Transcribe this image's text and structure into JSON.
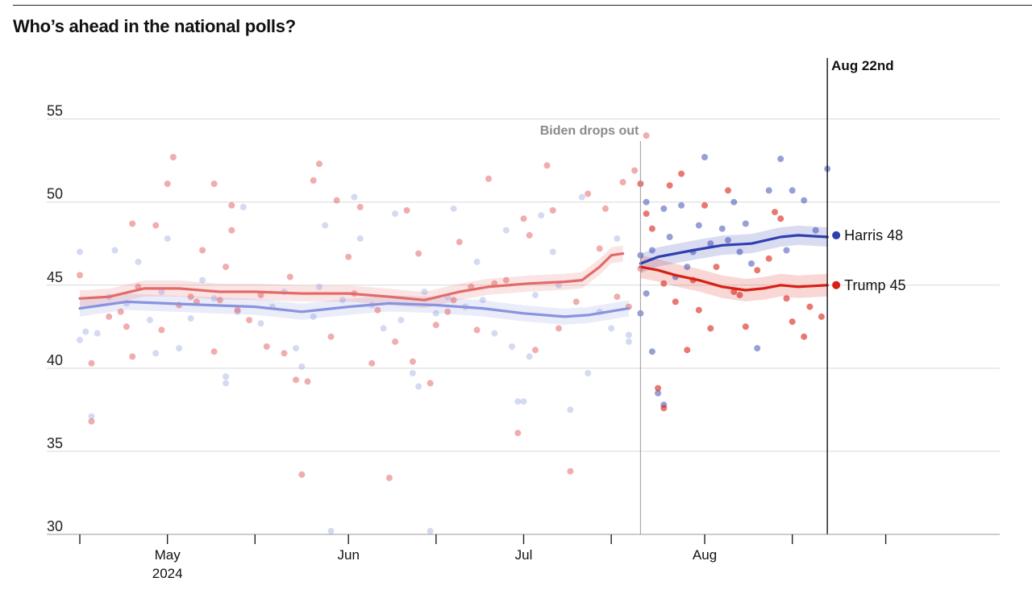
{
  "title": "Who’s ahead in the national polls?",
  "chart_data": {
    "type": "scatter",
    "title": "Who’s ahead in the national polls?",
    "xlabel": "",
    "ylabel": "",
    "x_axis": {
      "start": "2024-04-16",
      "end": "2024-09-15",
      "ticks": [
        {
          "date": "2024-04-16",
          "label": "",
          "sublabel": ""
        },
        {
          "date": "2024-05-01",
          "label": "May",
          "sublabel": "2024"
        },
        {
          "date": "2024-05-16",
          "label": "",
          "sublabel": ""
        },
        {
          "date": "2024-06-01",
          "label": "Jun",
          "sublabel": ""
        },
        {
          "date": "2024-06-16",
          "label": "",
          "sublabel": ""
        },
        {
          "date": "2024-07-01",
          "label": "Jul",
          "sublabel": ""
        },
        {
          "date": "2024-07-16",
          "label": "",
          "sublabel": ""
        },
        {
          "date": "2024-08-01",
          "label": "Aug",
          "sublabel": ""
        },
        {
          "date": "2024-08-16",
          "label": "",
          "sublabel": ""
        },
        {
          "date": "2024-09-01",
          "label": "",
          "sublabel": ""
        }
      ]
    },
    "ylim": [
      30,
      56
    ],
    "yticks": [
      30,
      35,
      40,
      45,
      50,
      55
    ],
    "grid": true,
    "annotations": [
      {
        "label": "Biden drops out",
        "date": "2024-07-21"
      },
      {
        "label": "Aug 22nd",
        "date": "2024-08-22"
      }
    ],
    "series": [
      {
        "role": "dem-before",
        "color": "#8894de",
        "trend": [
          [
            "2024-04-16",
            43.6
          ],
          [
            "2024-04-24",
            44.0
          ],
          [
            "2024-05-08",
            43.8
          ],
          [
            "2024-05-16",
            43.7
          ],
          [
            "2024-05-24",
            43.4
          ],
          [
            "2024-06-01",
            43.7
          ],
          [
            "2024-06-08",
            43.9
          ],
          [
            "2024-06-16",
            43.8
          ],
          [
            "2024-06-24",
            43.6
          ],
          [
            "2024-07-01",
            43.3
          ],
          [
            "2024-07-08",
            43.1
          ],
          [
            "2024-07-12",
            43.2
          ],
          [
            "2024-07-19",
            43.6
          ]
        ],
        "points": [
          [
            "2024-04-16",
            47.0
          ],
          [
            "2024-04-16",
            41.7
          ],
          [
            "2024-04-17",
            42.2
          ],
          [
            "2024-04-18",
            37.1
          ],
          [
            "2024-04-19",
            42.1
          ],
          [
            "2024-04-21",
            44.3
          ],
          [
            "2024-04-22",
            47.1
          ],
          [
            "2024-04-24",
            43.9
          ],
          [
            "2024-04-26",
            46.4
          ],
          [
            "2024-04-28",
            42.9
          ],
          [
            "2024-04-29",
            40.9
          ],
          [
            "2024-04-30",
            44.6
          ],
          [
            "2024-05-01",
            47.8
          ],
          [
            "2024-05-03",
            41.2
          ],
          [
            "2024-05-05",
            43.0
          ],
          [
            "2024-05-07",
            45.3
          ],
          [
            "2024-05-09",
            44.2
          ],
          [
            "2024-05-11",
            39.5
          ],
          [
            "2024-05-11",
            39.1
          ],
          [
            "2024-05-13",
            43.4
          ],
          [
            "2024-05-14",
            49.7
          ],
          [
            "2024-05-17",
            42.7
          ],
          [
            "2024-05-19",
            43.7
          ],
          [
            "2024-05-21",
            44.6
          ],
          [
            "2024-05-23",
            41.2
          ],
          [
            "2024-05-24",
            40.1
          ],
          [
            "2024-05-26",
            43.1
          ],
          [
            "2024-05-27",
            44.9
          ],
          [
            "2024-05-28",
            48.6
          ],
          [
            "2024-05-29",
            30.2
          ],
          [
            "2024-05-31",
            44.1
          ],
          [
            "2024-06-02",
            50.3
          ],
          [
            "2024-06-03",
            47.8
          ],
          [
            "2024-06-05",
            43.8
          ],
          [
            "2024-06-07",
            42.4
          ],
          [
            "2024-06-09",
            49.3
          ],
          [
            "2024-06-10",
            42.9
          ],
          [
            "2024-06-12",
            39.7
          ],
          [
            "2024-06-13",
            38.9
          ],
          [
            "2024-06-14",
            44.6
          ],
          [
            "2024-06-16",
            43.3
          ],
          [
            "2024-06-18",
            44.3
          ],
          [
            "2024-06-19",
            49.6
          ],
          [
            "2024-06-21",
            43.7
          ],
          [
            "2024-06-23",
            46.4
          ],
          [
            "2024-06-24",
            44.1
          ],
          [
            "2024-06-26",
            42.1
          ],
          [
            "2024-06-28",
            48.3
          ],
          [
            "2024-06-29",
            41.3
          ],
          [
            "2024-06-30",
            38.0
          ],
          [
            "2024-07-01",
            38.0
          ],
          [
            "2024-07-02",
            40.7
          ],
          [
            "2024-07-03",
            44.4
          ],
          [
            "2024-07-04",
            49.2
          ],
          [
            "2024-07-06",
            47.0
          ],
          [
            "2024-07-07",
            45.0
          ],
          [
            "2024-07-09",
            37.5
          ],
          [
            "2024-07-11",
            50.3
          ],
          [
            "2024-07-12",
            39.7
          ],
          [
            "2024-07-14",
            43.4
          ],
          [
            "2024-07-16",
            42.4
          ],
          [
            "2024-07-17",
            47.8
          ],
          [
            "2024-07-19",
            41.6
          ],
          [
            "2024-07-19",
            42.0
          ],
          [
            "2024-06-15",
            30.2
          ]
        ]
      },
      {
        "role": "dem-after",
        "color": "#2f3fb0",
        "trend": [
          [
            "2024-07-21",
            46.3
          ],
          [
            "2024-07-24",
            46.7
          ],
          [
            "2024-07-30",
            47.1
          ],
          [
            "2024-08-04",
            47.4
          ],
          [
            "2024-08-09",
            47.5
          ],
          [
            "2024-08-14",
            47.9
          ],
          [
            "2024-08-17",
            48.0
          ],
          [
            "2024-08-22",
            47.9
          ]
        ],
        "points": [
          [
            "2024-07-21",
            46.8
          ],
          [
            "2024-07-21",
            43.3
          ],
          [
            "2024-07-22",
            50.0
          ],
          [
            "2024-07-22",
            44.5
          ],
          [
            "2024-07-23",
            47.1
          ],
          [
            "2024-07-23",
            41.0
          ],
          [
            "2024-07-24",
            38.5
          ],
          [
            "2024-07-25",
            49.6
          ],
          [
            "2024-07-25",
            37.8
          ],
          [
            "2024-07-26",
            47.9
          ],
          [
            "2024-07-27",
            45.5
          ],
          [
            "2024-07-28",
            49.8
          ],
          [
            "2024-07-29",
            46.1
          ],
          [
            "2024-07-30",
            47.0
          ],
          [
            "2024-07-31",
            48.6
          ],
          [
            "2024-08-01",
            52.7
          ],
          [
            "2024-08-02",
            47.5
          ],
          [
            "2024-08-04",
            48.4
          ],
          [
            "2024-08-05",
            47.7
          ],
          [
            "2024-08-06",
            50.0
          ],
          [
            "2024-08-07",
            47.0
          ],
          [
            "2024-08-08",
            48.7
          ],
          [
            "2024-08-09",
            46.3
          ],
          [
            "2024-08-10",
            41.2
          ],
          [
            "2024-08-12",
            50.7
          ],
          [
            "2024-08-14",
            52.6
          ],
          [
            "2024-08-15",
            47.1
          ],
          [
            "2024-08-16",
            50.7
          ],
          [
            "2024-08-18",
            50.1
          ],
          [
            "2024-08-20",
            48.3
          ],
          [
            "2024-08-22",
            52.0
          ]
        ]
      },
      {
        "role": "rep-before",
        "color": "#e46a6a",
        "trend": [
          [
            "2024-04-16",
            44.2
          ],
          [
            "2024-04-21",
            44.3
          ],
          [
            "2024-04-27",
            44.8
          ],
          [
            "2024-05-03",
            44.8
          ],
          [
            "2024-05-10",
            44.6
          ],
          [
            "2024-05-16",
            44.6
          ],
          [
            "2024-05-24",
            44.5
          ],
          [
            "2024-06-01",
            44.5
          ],
          [
            "2024-06-08",
            44.3
          ],
          [
            "2024-06-14",
            44.1
          ],
          [
            "2024-06-20",
            44.6
          ],
          [
            "2024-06-25",
            44.9
          ],
          [
            "2024-07-02",
            45.1
          ],
          [
            "2024-07-08",
            45.2
          ],
          [
            "2024-07-11",
            45.3
          ],
          [
            "2024-07-14",
            46.1
          ],
          [
            "2024-07-16",
            46.8
          ],
          [
            "2024-07-18",
            46.9
          ]
        ],
        "points": [
          [
            "2024-04-16",
            45.6
          ],
          [
            "2024-04-18",
            40.3
          ],
          [
            "2024-04-18",
            36.8
          ],
          [
            "2024-04-21",
            43.1
          ],
          [
            "2024-04-23",
            43.4
          ],
          [
            "2024-04-24",
            42.5
          ],
          [
            "2024-04-25",
            48.7
          ],
          [
            "2024-04-25",
            40.7
          ],
          [
            "2024-04-26",
            44.9
          ],
          [
            "2024-04-29",
            48.6
          ],
          [
            "2024-04-30",
            42.3
          ],
          [
            "2024-05-01",
            51.1
          ],
          [
            "2024-05-02",
            52.7
          ],
          [
            "2024-05-03",
            43.8
          ],
          [
            "2024-05-05",
            44.3
          ],
          [
            "2024-05-06",
            44.0
          ],
          [
            "2024-05-07",
            47.1
          ],
          [
            "2024-05-09",
            51.1
          ],
          [
            "2024-05-09",
            41.0
          ],
          [
            "2024-05-10",
            44.1
          ],
          [
            "2024-05-11",
            46.1
          ],
          [
            "2024-05-12",
            48.3
          ],
          [
            "2024-05-12",
            49.8
          ],
          [
            "2024-05-13",
            43.5
          ],
          [
            "2024-05-15",
            42.9
          ],
          [
            "2024-05-17",
            44.4
          ],
          [
            "2024-05-18",
            41.3
          ],
          [
            "2024-05-21",
            40.9
          ],
          [
            "2024-05-22",
            45.5
          ],
          [
            "2024-05-23",
            39.3
          ],
          [
            "2024-05-24",
            33.6
          ],
          [
            "2024-05-25",
            39.2
          ],
          [
            "2024-05-26",
            51.3
          ],
          [
            "2024-05-27",
            52.3
          ],
          [
            "2024-05-29",
            41.9
          ],
          [
            "2024-05-30",
            50.1
          ],
          [
            "2024-06-01",
            46.7
          ],
          [
            "2024-06-02",
            44.5
          ],
          [
            "2024-06-03",
            49.7
          ],
          [
            "2024-06-05",
            40.3
          ],
          [
            "2024-06-06",
            43.5
          ],
          [
            "2024-06-08",
            33.4
          ],
          [
            "2024-06-09",
            41.6
          ],
          [
            "2024-06-11",
            49.5
          ],
          [
            "2024-06-12",
            40.4
          ],
          [
            "2024-06-13",
            46.9
          ],
          [
            "2024-06-15",
            39.1
          ],
          [
            "2024-06-16",
            42.6
          ],
          [
            "2024-06-18",
            43.4
          ],
          [
            "2024-06-19",
            44.1
          ],
          [
            "2024-06-20",
            47.6
          ],
          [
            "2024-06-22",
            44.9
          ],
          [
            "2024-06-23",
            42.3
          ],
          [
            "2024-06-25",
            51.4
          ],
          [
            "2024-06-26",
            45.1
          ],
          [
            "2024-06-28",
            45.3
          ],
          [
            "2024-06-30",
            36.1
          ],
          [
            "2024-07-01",
            49.0
          ],
          [
            "2024-07-02",
            48.0
          ],
          [
            "2024-07-03",
            41.1
          ],
          [
            "2024-07-05",
            52.2
          ],
          [
            "2024-07-06",
            49.5
          ],
          [
            "2024-07-07",
            42.4
          ],
          [
            "2024-07-09",
            33.8
          ],
          [
            "2024-07-10",
            44.0
          ],
          [
            "2024-07-12",
            50.5
          ],
          [
            "2024-07-14",
            47.2
          ],
          [
            "2024-07-15",
            49.6
          ],
          [
            "2024-07-17",
            44.3
          ],
          [
            "2024-07-18",
            51.2
          ],
          [
            "2024-07-19",
            43.7
          ],
          [
            "2024-07-20",
            51.9
          ],
          [
            "2024-07-21",
            46.0
          ],
          [
            "2024-07-22",
            54.0
          ]
        ]
      },
      {
        "role": "rep-after",
        "color": "#d81f14",
        "trend": [
          [
            "2024-07-21",
            46.1
          ],
          [
            "2024-07-24",
            45.9
          ],
          [
            "2024-07-27",
            45.6
          ],
          [
            "2024-07-31",
            45.3
          ],
          [
            "2024-08-04",
            44.9
          ],
          [
            "2024-08-08",
            44.7
          ],
          [
            "2024-08-11",
            44.8
          ],
          [
            "2024-08-14",
            45.0
          ],
          [
            "2024-08-17",
            44.9
          ],
          [
            "2024-08-22",
            45.0
          ]
        ],
        "points": [
          [
            "2024-07-21",
            51.1
          ],
          [
            "2024-07-22",
            49.3
          ],
          [
            "2024-07-23",
            48.4
          ],
          [
            "2024-07-24",
            38.8
          ],
          [
            "2024-07-25",
            37.6
          ],
          [
            "2024-07-25",
            45.1
          ],
          [
            "2024-07-26",
            51.0
          ],
          [
            "2024-07-27",
            44.0
          ],
          [
            "2024-07-28",
            51.7
          ],
          [
            "2024-07-29",
            41.1
          ],
          [
            "2024-07-30",
            45.3
          ],
          [
            "2024-07-31",
            43.5
          ],
          [
            "2024-08-01",
            49.8
          ],
          [
            "2024-08-02",
            42.4
          ],
          [
            "2024-08-03",
            46.1
          ],
          [
            "2024-08-05",
            50.7
          ],
          [
            "2024-08-06",
            44.6
          ],
          [
            "2024-08-07",
            44.4
          ],
          [
            "2024-08-08",
            42.5
          ],
          [
            "2024-08-10",
            45.9
          ],
          [
            "2024-08-12",
            46.6
          ],
          [
            "2024-08-13",
            49.4
          ],
          [
            "2024-08-14",
            49.0
          ],
          [
            "2024-08-15",
            44.2
          ],
          [
            "2024-08-16",
            42.8
          ],
          [
            "2024-08-18",
            41.9
          ],
          [
            "2024-08-19",
            43.7
          ],
          [
            "2024-08-21",
            43.1
          ]
        ]
      }
    ],
    "end_labels": [
      {
        "text": "Harris 48",
        "value": 48,
        "color": "#2f3fb0"
      },
      {
        "text": "Trump 45",
        "value": 45,
        "color": "#d81f14"
      }
    ]
  }
}
